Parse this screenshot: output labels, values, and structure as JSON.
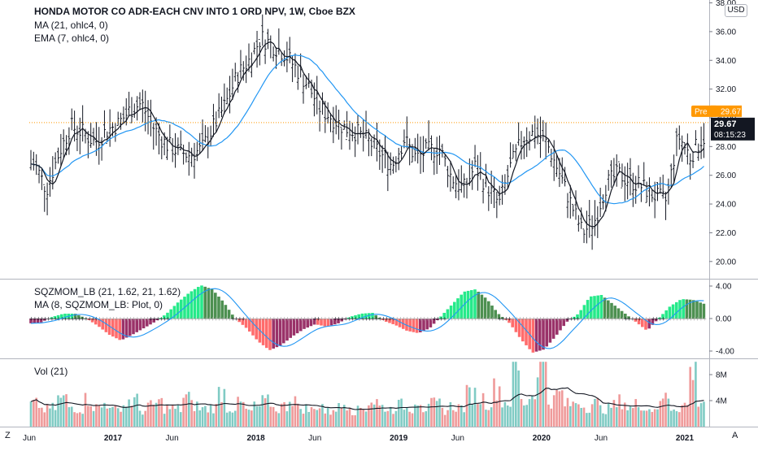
{
  "chart_title": "HONDA MOTOR CO ADR-EACH CNV INTO 1 ORD NPV, 1W, Cboe BZX",
  "currency_badge": "USD",
  "studies": {
    "ma": "MA (21, ohlc4, 0)",
    "ema": "EMA (7, ohlc4, 0)",
    "sqz": "SQZMOM_LB (21, 1.62, 21, 1.62)",
    "sqz_ma": "MA (8, SQZMOM_LB: Plot, 0)",
    "vol": "Vol (21)"
  },
  "price_labels": {
    "pre_tag": "Pre",
    "pre_value": "29.67",
    "last_value": "29.67",
    "countdown": "08:15:23"
  },
  "corner_labels": {
    "left": "Z",
    "right": "A"
  },
  "colors": {
    "bars": "#131722",
    "ma_line": "#2196f3",
    "ema_line": "#131722",
    "pre_tag": "#ff9800",
    "last_tag": "#131722",
    "sqz_pos_strong": "#00e676",
    "sqz_pos_weak": "#2e7d32",
    "sqz_neg_strong": "#ff5252",
    "sqz_neg_weak": "#880e4f",
    "vol_up": "#80cbc4",
    "vol_down": "#ef9a9a"
  },
  "chart_data": [
    {
      "type": "ohlc",
      "title": "HONDA MOTOR CO ADR-EACH CNV INTO 1 ORD NPV, 1W, Cboe BZX",
      "x_axis_labels": [
        "Jun",
        "2017",
        "Jun",
        "2018",
        "Jun",
        "2019",
        "Jun",
        "2020",
        "Jun",
        "2021"
      ],
      "y_axis_ticks": [
        "38.00",
        "36.00",
        "34.00",
        "32.00",
        "30.00",
        "28.00",
        "26.00",
        "24.00",
        "22.00",
        "20.00"
      ],
      "ylim": [
        18.8,
        38.2
      ],
      "close_series": {
        "dates": [
          "2016-06",
          "2016-07",
          "2016-08",
          "2016-09",
          "2016-10",
          "2016-11",
          "2016-12",
          "2017-01",
          "2017-02",
          "2017-03",
          "2017-04",
          "2017-05",
          "2017-06",
          "2017-07",
          "2017-08",
          "2017-09",
          "2017-10",
          "2017-11",
          "2017-12",
          "2018-01",
          "2018-02",
          "2018-03",
          "2018-04",
          "2018-05",
          "2018-06",
          "2018-07",
          "2018-08",
          "2018-09",
          "2018-10",
          "2018-11",
          "2018-12",
          "2019-01",
          "2019-02",
          "2019-03",
          "2019-04",
          "2019-05",
          "2019-06",
          "2019-07",
          "2019-08",
          "2019-09",
          "2019-10",
          "2019-11",
          "2019-12",
          "2020-01",
          "2020-02",
          "2020-03",
          "2020-04",
          "2020-05",
          "2020-06",
          "2020-07",
          "2020-08",
          "2020-09",
          "2020-10",
          "2020-11",
          "2020-12",
          "2021-01",
          "2021-02"
        ],
        "values": [
          26.8,
          25.0,
          27.5,
          29.4,
          29.0,
          28.3,
          29.1,
          29.6,
          30.6,
          31.0,
          29.3,
          28.2,
          27.7,
          27.4,
          27.8,
          29.4,
          30.9,
          33.0,
          34.0,
          35.6,
          35.0,
          34.5,
          33.4,
          32.2,
          30.6,
          30.0,
          29.3,
          29.0,
          28.4,
          27.5,
          26.7,
          28.5,
          27.2,
          27.7,
          27.9,
          25.9,
          25.0,
          26.6,
          25.2,
          24.0,
          26.7,
          28.6,
          29.0,
          28.2,
          26.2,
          24.1,
          22.0,
          22.8,
          25.4,
          26.1,
          25.6,
          25.2,
          24.6,
          24.2,
          28.8,
          27.3,
          28.6
        ]
      },
      "last_price": 29.67
    },
    {
      "type": "bar",
      "name": "SQZMOM_LB (21, 1.62, 21, 1.62)",
      "y_axis_ticks": [
        "4.00",
        "0.00",
        "-4.00"
      ],
      "ylim": [
        -4.6,
        4.6
      ],
      "values": [
        -0.6,
        -0.5,
        0.2,
        0.6,
        0.6,
        0.0,
        -0.9,
        -2.0,
        -2.7,
        -2.0,
        -1.2,
        -0.4,
        0.6,
        2.0,
        3.2,
        4.1,
        3.6,
        2.0,
        0.0,
        -1.2,
        -2.8,
        -3.9,
        -3.3,
        -2.2,
        -1.3,
        -0.7,
        -1.0,
        -0.6,
        0.2,
        0.6,
        0.7,
        -0.3,
        -0.8,
        -1.5,
        -1.8,
        -1.2,
        0.3,
        1.8,
        3.3,
        3.6,
        2.4,
        0.6,
        -0.6,
        -2.6,
        -4.2,
        -3.8,
        -2.2,
        -0.4,
        0.6,
        2.7,
        2.9,
        1.8,
        0.7,
        -0.4,
        -1.5,
        0.0,
        1.5,
        2.4,
        2.3,
        1.8
      ]
    },
    {
      "type": "bar",
      "name": "Vol (21)",
      "y_axis_ticks": [
        "8M",
        "4M"
      ],
      "ylim": [
        0,
        10.5
      ],
      "values_millions": [
        3.6,
        2.8,
        3.0,
        4.5,
        3.2,
        2.9,
        4.4,
        3.1,
        3.8,
        2.7,
        3.5,
        4.2,
        2.6,
        3.3,
        3.9,
        3.0,
        2.8,
        4.8,
        3.4,
        2.9,
        3.1,
        5.6,
        3.0,
        3.7,
        2.5,
        3.2,
        4.0,
        2.9,
        3.3,
        4.6,
        3.0,
        2.7,
        3.5,
        2.4,
        3.1,
        3.8,
        2.6,
        3.0,
        4.1,
        3.2,
        2.8,
        3.5,
        3.0,
        4.4,
        2.9,
        3.6,
        2.7,
        3.3,
        3.1,
        5.2,
        4.6,
        3.8,
        6.2,
        4.0,
        9.4,
        3.9,
        5.1,
        11.0,
        4.2,
        5.3,
        3.6,
        4.0,
        3.2,
        3.8,
        2.9,
        3.4,
        4.1,
        3.0,
        3.6,
        2.8,
        3.3,
        4.8,
        3.1,
        3.5,
        9.0,
        4.2
      ],
      "ma_line_millions": 3.6
    }
  ]
}
